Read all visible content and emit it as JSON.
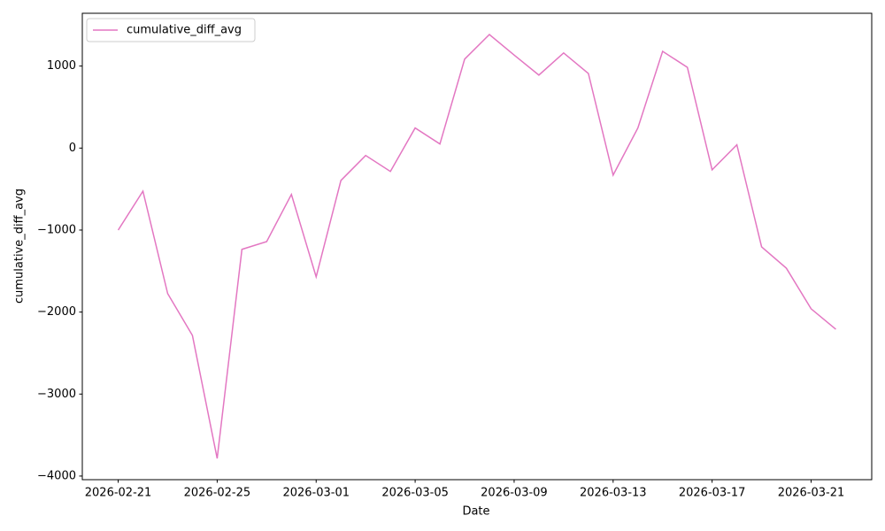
{
  "chart_data": {
    "type": "line",
    "x_label": "Date",
    "y_label": "cumulative_diff_avg",
    "x": [
      "2026-02-21",
      "2026-02-22",
      "2026-02-23",
      "2026-02-24",
      "2026-02-25",
      "2026-02-26",
      "2026-02-27",
      "2026-02-28",
      "2026-03-01",
      "2026-03-02",
      "2026-03-03",
      "2026-03-04",
      "2026-03-05",
      "2026-03-06",
      "2026-03-07",
      "2026-03-08",
      "2026-03-09",
      "2026-03-10",
      "2026-03-11",
      "2026-03-12",
      "2026-03-13",
      "2026-03-14",
      "2026-03-15",
      "2026-03-16",
      "2026-03-17",
      "2026-03-18",
      "2026-03-19",
      "2026-03-20",
      "2026-03-21",
      "2026-03-22"
    ],
    "series": [
      {
        "name": "cumulative_diff_avg",
        "color": "#e377c2",
        "values": [
          -1000,
          -525,
          -1775,
          -2285,
          -3785,
          -1235,
          -1140,
          -565,
          -1570,
          -395,
          -90,
          -285,
          245,
          50,
          1085,
          1385,
          1135,
          890,
          1160,
          910,
          -330,
          245,
          1180,
          985,
          -265,
          40,
          -1205,
          -1465,
          -1960,
          -2210
        ]
      }
    ],
    "xlim": [
      "2026-02-19T13:12",
      "2026-03-23T10:48"
    ],
    "xticks": [
      "2026-02-21",
      "2026-02-25",
      "2026-03-01",
      "2026-03-05",
      "2026-03-09",
      "2026-03-13",
      "2026-03-17",
      "2026-03-21"
    ],
    "ylim": [
      -4044,
      1644
    ],
    "yticks": [
      {
        "value": -4000,
        "label": "−4000"
      },
      {
        "value": -3000,
        "label": "−3000"
      },
      {
        "value": -2000,
        "label": "−2000"
      },
      {
        "value": -1000,
        "label": "−1000"
      },
      0,
      1000
    ],
    "legend": "upper left",
    "grid": false
  }
}
